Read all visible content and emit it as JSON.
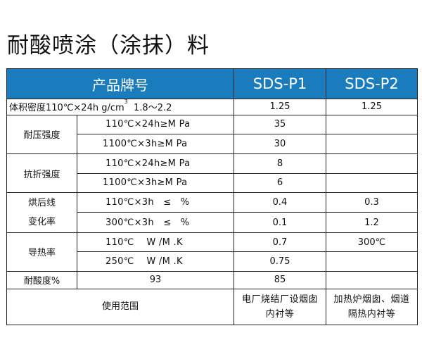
{
  "title": "耐酸喷涂（涂抹）料",
  "header": {
    "product": "产品牌号",
    "p1": "SDS-P1",
    "p2": "SDS-P2"
  },
  "rows": {
    "density": {
      "label": "体积密度110℃×24h g/cm",
      "sup": "3",
      "value0": "1.8～2.2",
      "p1": "1.25",
      "p2": "1.25"
    },
    "compressive": {
      "label": "耐压强度",
      "r1": {
        "cond": "110℃×24h≥M Pa",
        "p1": "35",
        "p2": ""
      },
      "r2": {
        "cond": "1100℃×3h≥M Pa",
        "p1": "30",
        "p2": ""
      }
    },
    "flexural": {
      "label": "抗折强度",
      "r1": {
        "cond": "110℃×24h≥M Pa",
        "p1": "8",
        "p2": ""
      },
      "r2": {
        "cond": "1100℃×3h≥M Pa",
        "p1": "6",
        "p2": ""
      }
    },
    "shrink": {
      "label1": "烘后线",
      "label2": "变化率",
      "r1": {
        "cond": "110℃×3h   ≤   %",
        "p1": "0.4",
        "p2": "0.3"
      },
      "r2": {
        "cond": "300℃×3h   ≤   %",
        "p1": "0.1",
        "p2": "1.2"
      }
    },
    "thermal": {
      "label": "导热率",
      "r1": {
        "cond": "110℃    W /M .K",
        "p1": "0.7",
        "p2": "300℃"
      },
      "r2": {
        "cond": "250℃    W /M .K",
        "p1": "0.75",
        "p2": ""
      }
    },
    "acid": {
      "label": "耐酸度%",
      "value0": "93",
      "p1": "85",
      "p2": ""
    },
    "use": {
      "label": "使用范围",
      "p1_line1": "电厂烧结厂设烟囱",
      "p1_line2": "内衬等",
      "p2_line1": "加热炉烟囱、烟道",
      "p2_line2": "隔热内衬等"
    }
  }
}
